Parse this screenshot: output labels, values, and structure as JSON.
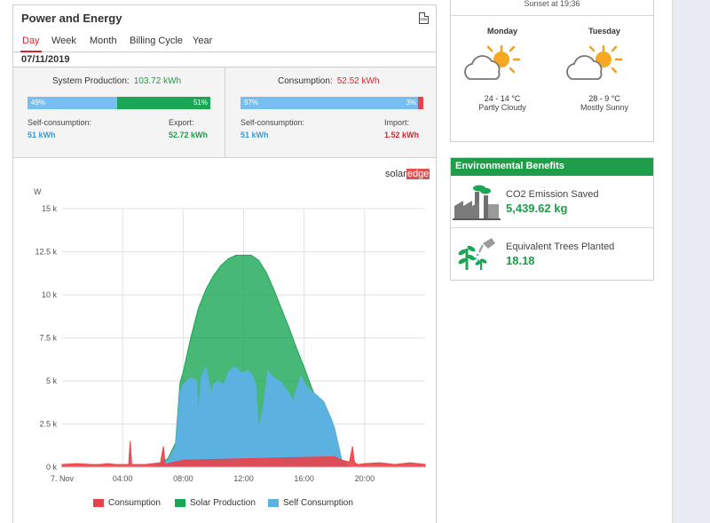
{
  "power_energy": {
    "title": "Power and Energy",
    "csv_icon": "csv-export-icon",
    "tabs": [
      "Day",
      "Week",
      "Month",
      "Billing Cycle",
      "Year"
    ],
    "active_tab": "Day",
    "date": "07/11/2019",
    "production": {
      "label": "System Production:",
      "value": "103.72 kWh",
      "bar_left_pct": "49%",
      "bar_right_pct": "51%",
      "self_label": "Self-consumption:",
      "self_value": "51 kWh",
      "export_label": "Export:",
      "export_value": "52.72 kWh"
    },
    "consumption": {
      "label": "Consumption:",
      "value": "52.52 kWh",
      "bar_left_pct": "97%",
      "bar_right_pct": "3%",
      "self_label": "Self-consumption:",
      "self_value": "51 kWh",
      "import_label": "Import:",
      "import_value": "1.52 kWh"
    },
    "logo": {
      "part1": "solar",
      "part2": "edge"
    }
  },
  "chart_data": {
    "type": "area",
    "ylabel": "W",
    "ylim": [
      0,
      15000
    ],
    "y_ticks": [
      "0 k",
      "2.5 k",
      "5 k",
      "7.5 k",
      "10 k",
      "12.5 k",
      "15 k"
    ],
    "x_ticks": [
      "7. Nov",
      "04:00",
      "08:00",
      "12:00",
      "16:00",
      "20:00"
    ],
    "x_range_hours": [
      0,
      24
    ],
    "grid": true,
    "legend_position": "bottom",
    "series": [
      {
        "name": "Consumption",
        "color": "#e8434a",
        "x": [
          0,
          1,
          2,
          2.5,
          3,
          3.5,
          4,
          4.4,
          4.5,
          4.6,
          5,
          5.5,
          6,
          6.5,
          6.7,
          6.8,
          6.9,
          7,
          8,
          18,
          18.5,
          19,
          19.2,
          19.3,
          19.4,
          19.6,
          20,
          21,
          22,
          23,
          24
        ],
        "y": [
          150,
          200,
          150,
          150,
          200,
          150,
          150,
          150,
          1500,
          150,
          150,
          150,
          200,
          250,
          1200,
          200,
          150,
          200,
          400,
          600,
          400,
          300,
          1200,
          400,
          200,
          150,
          200,
          250,
          150,
          250,
          150
        ]
      },
      {
        "name": "Solar Production",
        "color": "#1aa655",
        "x": [
          6,
          6.5,
          7,
          7.5,
          7.8,
          8,
          8.5,
          9,
          9.5,
          10,
          10.5,
          11,
          11.5,
          12,
          12.5,
          13,
          13.5,
          14,
          14.5,
          15,
          15.5,
          16,
          16.5,
          17,
          17.5,
          18,
          18.5,
          19,
          19.5
        ],
        "y": [
          0,
          200,
          500,
          1400,
          4900,
          5500,
          7500,
          9200,
          10300,
          11100,
          11700,
          12100,
          12300,
          12300,
          12300,
          12000,
          11300,
          10300,
          9200,
          8100,
          6900,
          5800,
          4600,
          3600,
          2500,
          1200,
          300,
          0,
          0
        ]
      },
      {
        "name": "Self Consumption",
        "color": "#5bb1e0",
        "x": [
          6,
          6.5,
          7,
          7.5,
          7.8,
          8,
          8.5,
          8.9,
          9,
          9.2,
          9.5,
          9.9,
          10,
          10.3,
          10.7,
          11,
          11.3,
          11.5,
          11.8,
          12,
          12.3,
          12.6,
          12.8,
          13,
          13.3,
          13.6,
          14,
          14.5,
          15,
          15.3,
          15.5,
          15.8,
          16,
          16.3,
          16.8,
          17.3,
          17.8,
          18,
          18.5,
          19
        ],
        "y": [
          0,
          200,
          400,
          1200,
          4400,
          4800,
          5200,
          5000,
          3000,
          5200,
          5800,
          4200,
          4800,
          5000,
          4800,
          5500,
          5800,
          5800,
          5500,
          5500,
          5600,
          5300,
          4800,
          2200,
          3500,
          5600,
          5200,
          4900,
          4300,
          3800,
          4500,
          5300,
          4900,
          4500,
          4200,
          3800,
          2800,
          2300,
          400,
          0
        ]
      }
    ]
  },
  "weather": {
    "sunset": "Sunset at 19:36",
    "days": [
      {
        "name": "Monday",
        "icon": "partly-cloudy-icon",
        "temp": "24 - 14 °C",
        "condition": "Partly Cloudy"
      },
      {
        "name": "Tuesday",
        "icon": "mostly-sunny-icon",
        "temp": "28 - 9 °C",
        "condition": "Mostly Sunny"
      }
    ]
  },
  "environmental": {
    "title": "Environmental Benefits",
    "co2": {
      "label": "CO2 Emission Saved",
      "value": "5,439.62 kg",
      "icon": "factory-icon"
    },
    "trees": {
      "label": "Equivalent Trees Planted",
      "value": "18.18",
      "icon": "tree-watering-icon"
    }
  },
  "colors": {
    "accent_red": "#d9262e",
    "green": "#1e9e48",
    "blue": "#5bb1e0"
  }
}
